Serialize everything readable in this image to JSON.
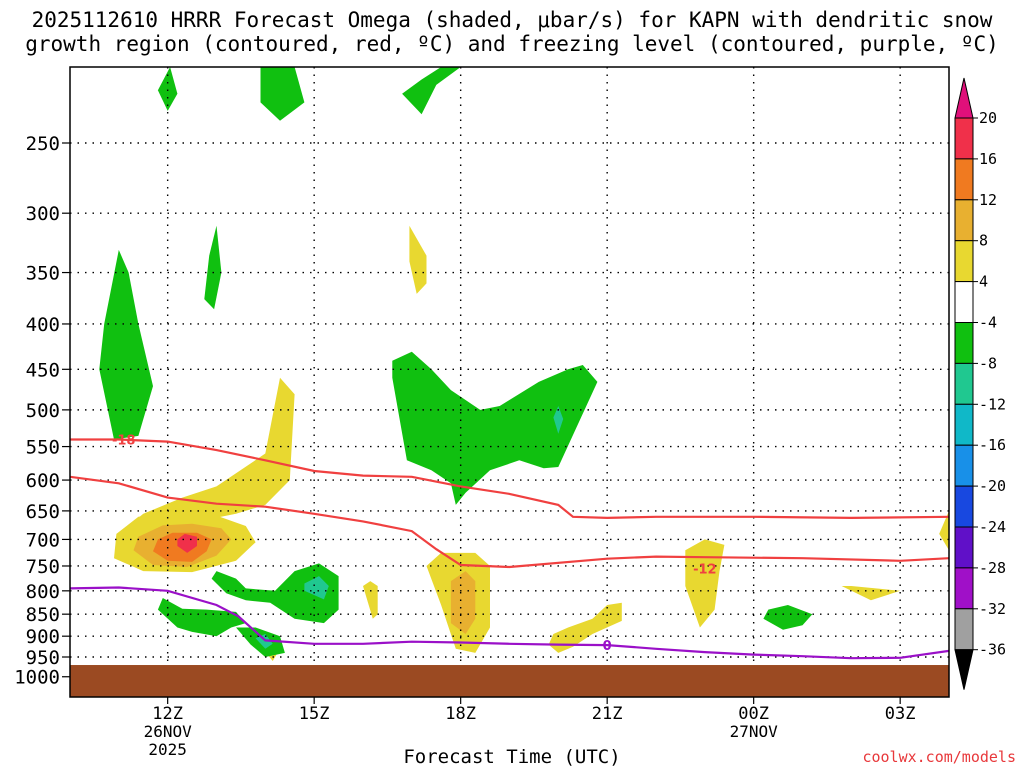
{
  "title": {
    "line1": "2025112610 HRRR Forecast Omega (shaded, μbar/s) for KAPN with dendritic snow",
    "line2": "growth region (contoured, red, ºC) and freezing level (contoured, purple, ºC)"
  },
  "credit": "coolwx.com/models",
  "chart_data": {
    "type": "time-height cross section",
    "xlabel": "Forecast Time (UTC)",
    "x_ticks": [
      {
        "label": "12Z",
        "sub": [
          "26NOV",
          "2025"
        ]
      },
      {
        "label": "15Z",
        "sub": []
      },
      {
        "label": "18Z",
        "sub": []
      },
      {
        "label": "21Z",
        "sub": []
      },
      {
        "label": "00Z",
        "sub": [
          "27NOV"
        ]
      },
      {
        "label": "03Z",
        "sub": []
      }
    ],
    "x_range_hours_utc": [
      10.0,
      28.0
    ],
    "y_axis": "pressure (hPa), log scale, inverted",
    "y_ticks": [
      250,
      300,
      350,
      400,
      450,
      500,
      550,
      600,
      650,
      700,
      750,
      800,
      850,
      900,
      950,
      1000
    ],
    "y_range": [
      200,
      1050
    ],
    "grid": true,
    "ground_level_hpa": 970,
    "colorbar": {
      "labels": [
        "20",
        "16",
        "12",
        "8",
        "4",
        "-4",
        "-8",
        "-12",
        "-16",
        "-20",
        "-24",
        "-28",
        "-32",
        "-36"
      ],
      "colors": [
        "#f0304a",
        "#f07a20",
        "#e8b030",
        "#e8d830",
        "#ffffff",
        "#10c010",
        "#20c890",
        "#10b8c8",
        "#1890e8",
        "#1848e0",
        "#6010c8",
        "#a010c8",
        "#a0a0a0"
      ],
      "top_arrow": "#e0107a",
      "bottom_arrow": "#000000"
    },
    "contours": [
      {
        "name": "-18",
        "color": "#f04040",
        "points": [
          [
            10.0,
            540
          ],
          [
            11.0,
            540
          ],
          [
            12.0,
            543
          ],
          [
            13.0,
            555
          ],
          [
            14.0,
            570
          ],
          [
            15.0,
            586
          ],
          [
            16.0,
            593
          ],
          [
            17.0,
            595
          ],
          [
            18.0,
            610
          ],
          [
            19.0,
            622
          ],
          [
            20.0,
            640
          ],
          [
            20.3,
            660
          ],
          [
            21.0,
            662
          ],
          [
            22.0,
            660
          ],
          [
            24.0,
            660
          ],
          [
            26.0,
            662
          ],
          [
            28.0,
            660
          ]
        ],
        "label_at": [
          11.1,
          540
        ]
      },
      {
        "name": "-12",
        "color": "#f04040",
        "points": [
          [
            10.0,
            595
          ],
          [
            11.0,
            605
          ],
          [
            12.0,
            628
          ],
          [
            13.0,
            638
          ],
          [
            14.0,
            643
          ],
          [
            15.0,
            655
          ],
          [
            16.0,
            668
          ],
          [
            17.0,
            685
          ],
          [
            17.5,
            718
          ],
          [
            18.0,
            748
          ],
          [
            19.0,
            752
          ],
          [
            21.0,
            736
          ],
          [
            22.0,
            732
          ],
          [
            23.0,
            733
          ],
          [
            25.0,
            735
          ],
          [
            27.0,
            740
          ],
          [
            28.0,
            735
          ]
        ],
        "label_at": [
          23.0,
          755
        ]
      },
      {
        "name": "0",
        "color": "#9a10c8",
        "points": [
          [
            10.0,
            795
          ],
          [
            11.0,
            793
          ],
          [
            12.0,
            800
          ],
          [
            13.0,
            830
          ],
          [
            13.45,
            855
          ],
          [
            14.0,
            910
          ],
          [
            15.0,
            918
          ],
          [
            16.0,
            918
          ],
          [
            17.0,
            913
          ],
          [
            18.0,
            915
          ],
          [
            19.0,
            918
          ],
          [
            20.0,
            920
          ],
          [
            21.0,
            921
          ],
          [
            22.0,
            930
          ],
          [
            23.0,
            938
          ],
          [
            24.0,
            944
          ],
          [
            25.0,
            948
          ],
          [
            26.0,
            953
          ],
          [
            27.0,
            952
          ],
          [
            28.0,
            935
          ]
        ],
        "label_at": [
          21.0,
          921
        ]
      }
    ],
    "shaded_regions": [
      {
        "value": "4",
        "color": "#e8d830",
        "points": [
          [
            11.0,
            730
          ],
          [
            11.6,
            692
          ],
          [
            12.5,
            670
          ],
          [
            13.4,
            655
          ],
          [
            14.0,
            640
          ],
          [
            14.5,
            600
          ],
          [
            14.6,
            480
          ],
          [
            14.3,
            460
          ],
          [
            14.0,
            560
          ],
          [
            13.0,
            610
          ],
          [
            12.3,
            628
          ],
          [
            11.5,
            655
          ],
          [
            11.0,
            690
          ]
        ]
      },
      {
        "value": "4",
        "color": "#e8d830",
        "points": [
          [
            10.9,
            735
          ],
          [
            11.5,
            760
          ],
          [
            12.5,
            762
          ],
          [
            13.4,
            740
          ],
          [
            13.8,
            705
          ],
          [
            13.6,
            676
          ],
          [
            13.0,
            658
          ],
          [
            12.2,
            650
          ],
          [
            11.4,
            660
          ],
          [
            10.95,
            690
          ]
        ]
      },
      {
        "value": "8",
        "color": "#e8b030",
        "points": [
          [
            11.3,
            720
          ],
          [
            11.7,
            748
          ],
          [
            12.4,
            752
          ],
          [
            13.0,
            730
          ],
          [
            13.3,
            700
          ],
          [
            13.1,
            680
          ],
          [
            12.5,
            672
          ],
          [
            11.9,
            675
          ],
          [
            11.4,
            695
          ]
        ]
      },
      {
        "value": "12",
        "color": "#f07a20",
        "points": [
          [
            11.7,
            722
          ],
          [
            12.0,
            740
          ],
          [
            12.5,
            742
          ],
          [
            12.8,
            722
          ],
          [
            12.9,
            700
          ],
          [
            12.6,
            688
          ],
          [
            12.1,
            688
          ],
          [
            11.8,
            700
          ]
        ]
      },
      {
        "value": "20",
        "color": "#f0304a",
        "points": [
          [
            12.2,
            712
          ],
          [
            12.4,
            725
          ],
          [
            12.6,
            712
          ],
          [
            12.6,
            695
          ],
          [
            12.35,
            690
          ],
          [
            12.2,
            700
          ]
        ]
      },
      {
        "value": "4",
        "color": "#e8d830",
        "points": [
          [
            17.3,
            750
          ],
          [
            17.6,
            830
          ],
          [
            17.9,
            930
          ],
          [
            18.3,
            940
          ],
          [
            18.6,
            880
          ],
          [
            18.6,
            750
          ],
          [
            18.3,
            725
          ],
          [
            17.6,
            725
          ]
        ]
      },
      {
        "value": "8",
        "color": "#e8b030",
        "points": [
          [
            17.8,
            780
          ],
          [
            17.8,
            870
          ],
          [
            18.1,
            895
          ],
          [
            18.3,
            860
          ],
          [
            18.3,
            780
          ],
          [
            18.1,
            760
          ]
        ]
      },
      {
        "value": "4",
        "color": "#e8d830",
        "points": [
          [
            16.0,
            790
          ],
          [
            16.2,
            860
          ],
          [
            16.3,
            850
          ],
          [
            16.3,
            790
          ],
          [
            16.15,
            780
          ]
        ]
      },
      {
        "value": "4",
        "color": "#e8d830",
        "points": [
          [
            19.8,
            920
          ],
          [
            20.0,
            940
          ],
          [
            20.3,
            925
          ],
          [
            20.7,
            895
          ],
          [
            21.3,
            865
          ],
          [
            21.3,
            825
          ],
          [
            21.0,
            830
          ],
          [
            20.7,
            860
          ],
          [
            20.2,
            880
          ],
          [
            19.9,
            895
          ]
        ]
      },
      {
        "value": "4",
        "color": "#e8d830",
        "points": [
          [
            22.6,
            720
          ],
          [
            22.6,
            790
          ],
          [
            22.9,
            880
          ],
          [
            23.2,
            840
          ],
          [
            23.3,
            760
          ],
          [
            23.4,
            710
          ],
          [
            23.0,
            700
          ]
        ]
      },
      {
        "value": "4",
        "color": "#e8d830",
        "points": [
          [
            26.0,
            790
          ],
          [
            27.0,
            800
          ],
          [
            26.4,
            820
          ],
          [
            25.8,
            790
          ]
        ]
      },
      {
        "value": "4",
        "color": "#e8d830",
        "points": [
          [
            28.0,
            650
          ],
          [
            27.8,
            690
          ],
          [
            28.0,
            720
          ]
        ]
      },
      {
        "value": "4",
        "color": "#e8d830",
        "points": [
          [
            16.95,
            310
          ],
          [
            17.3,
            335
          ],
          [
            17.3,
            360
          ],
          [
            17.1,
            370
          ],
          [
            16.95,
            340
          ]
        ]
      },
      {
        "value": "4",
        "color": "#e8d830",
        "points": [
          [
            13.95,
            930
          ],
          [
            14.15,
            960
          ],
          [
            14.25,
            940
          ],
          [
            14.1,
            910
          ]
        ]
      },
      {
        "value": "-4",
        "color": "#10c010",
        "points": [
          [
            10.6,
            450
          ],
          [
            10.9,
            540
          ],
          [
            11.4,
            535
          ],
          [
            11.7,
            470
          ],
          [
            11.4,
            400
          ],
          [
            11.2,
            350
          ],
          [
            11.0,
            330
          ],
          [
            10.7,
            400
          ]
        ]
      },
      {
        "value": "-4",
        "color": "#10c010",
        "points": [
          [
            12.75,
            375
          ],
          [
            12.95,
            385
          ],
          [
            13.1,
            350
          ],
          [
            13.0,
            310
          ],
          [
            12.85,
            335
          ]
        ]
      },
      {
        "value": "-4",
        "color": "#10c010",
        "points": [
          [
            11.8,
            218
          ],
          [
            12.0,
            230
          ],
          [
            12.2,
            220
          ],
          [
            12.05,
            205
          ]
        ]
      },
      {
        "value": "-4",
        "color": "#10c010",
        "points": [
          [
            13.9,
            205
          ],
          [
            13.9,
            225
          ],
          [
            14.3,
            236
          ],
          [
            14.8,
            225
          ],
          [
            14.6,
            200
          ]
        ]
      },
      {
        "value": "-4",
        "color": "#10c010",
        "points": [
          [
            16.8,
            220
          ],
          [
            17.2,
            232
          ],
          [
            17.5,
            215
          ],
          [
            18.0,
            205
          ],
          [
            17.6,
            205
          ],
          [
            17.2,
            212
          ]
        ]
      },
      {
        "value": "-4",
        "color": "#10c010",
        "points": [
          [
            17.6,
            200
          ],
          [
            17.6,
            205
          ],
          [
            18.3,
            205
          ],
          [
            18.3,
            200
          ]
        ]
      },
      {
        "value": "-4",
        "color": "#10c010",
        "points": [
          [
            16.6,
            460
          ],
          [
            16.9,
            570
          ],
          [
            17.4,
            585
          ],
          [
            17.8,
            605
          ],
          [
            17.9,
            640
          ],
          [
            18.1,
            620
          ],
          [
            18.6,
            585
          ],
          [
            19.2,
            570
          ],
          [
            19.7,
            582
          ],
          [
            20.0,
            580
          ],
          [
            20.8,
            465
          ],
          [
            20.5,
            445
          ],
          [
            20.2,
            450
          ],
          [
            19.6,
            465
          ],
          [
            18.8,
            495
          ],
          [
            18.4,
            500
          ],
          [
            17.8,
            475
          ],
          [
            17.4,
            450
          ],
          [
            17.0,
            430
          ],
          [
            16.6,
            440
          ]
        ]
      },
      {
        "value": "-4",
        "color": "#10c010",
        "points": [
          [
            11.8,
            840
          ],
          [
            12.2,
            880
          ],
          [
            12.5,
            890
          ],
          [
            13.0,
            900
          ],
          [
            13.3,
            880
          ],
          [
            13.6,
            870
          ],
          [
            13.4,
            845
          ],
          [
            12.8,
            840
          ],
          [
            12.3,
            838
          ],
          [
            11.9,
            815
          ]
        ]
      },
      {
        "value": "-4",
        "color": "#10c010",
        "points": [
          [
            12.9,
            775
          ],
          [
            13.2,
            805
          ],
          [
            13.6,
            820
          ],
          [
            14.1,
            825
          ],
          [
            14.6,
            860
          ],
          [
            15.2,
            870
          ],
          [
            15.5,
            840
          ],
          [
            15.5,
            770
          ],
          [
            15.1,
            745
          ],
          [
            14.6,
            760
          ],
          [
            14.2,
            800
          ],
          [
            13.6,
            795
          ],
          [
            13.4,
            775
          ],
          [
            13.0,
            760
          ]
        ]
      },
      {
        "value": "-4",
        "color": "#10c010",
        "points": [
          [
            13.4,
            880
          ],
          [
            13.7,
            920
          ],
          [
            14.0,
            950
          ],
          [
            14.4,
            940
          ],
          [
            14.3,
            900
          ],
          [
            13.8,
            880
          ]
        ]
      },
      {
        "value": "-4",
        "color": "#10c010",
        "points": [
          [
            24.2,
            860
          ],
          [
            24.6,
            885
          ],
          [
            25.0,
            875
          ],
          [
            25.2,
            850
          ],
          [
            24.7,
            830
          ],
          [
            24.3,
            840
          ]
        ]
      },
      {
        "value": "-8",
        "color": "#20c890",
        "points": [
          [
            14.8,
            800
          ],
          [
            15.2,
            818
          ],
          [
            15.3,
            790
          ],
          [
            15.1,
            770
          ],
          [
            14.8,
            785
          ]
        ]
      },
      {
        "value": "-8",
        "color": "#20c890",
        "points": [
          [
            13.8,
            905
          ],
          [
            14.0,
            930
          ],
          [
            14.15,
            918
          ],
          [
            14.0,
            895
          ]
        ]
      },
      {
        "value": "-8",
        "color": "#20c890",
        "points": [
          [
            19.9,
            510
          ],
          [
            20.0,
            532
          ],
          [
            20.1,
            512
          ],
          [
            20.0,
            495
          ]
        ]
      }
    ]
  }
}
